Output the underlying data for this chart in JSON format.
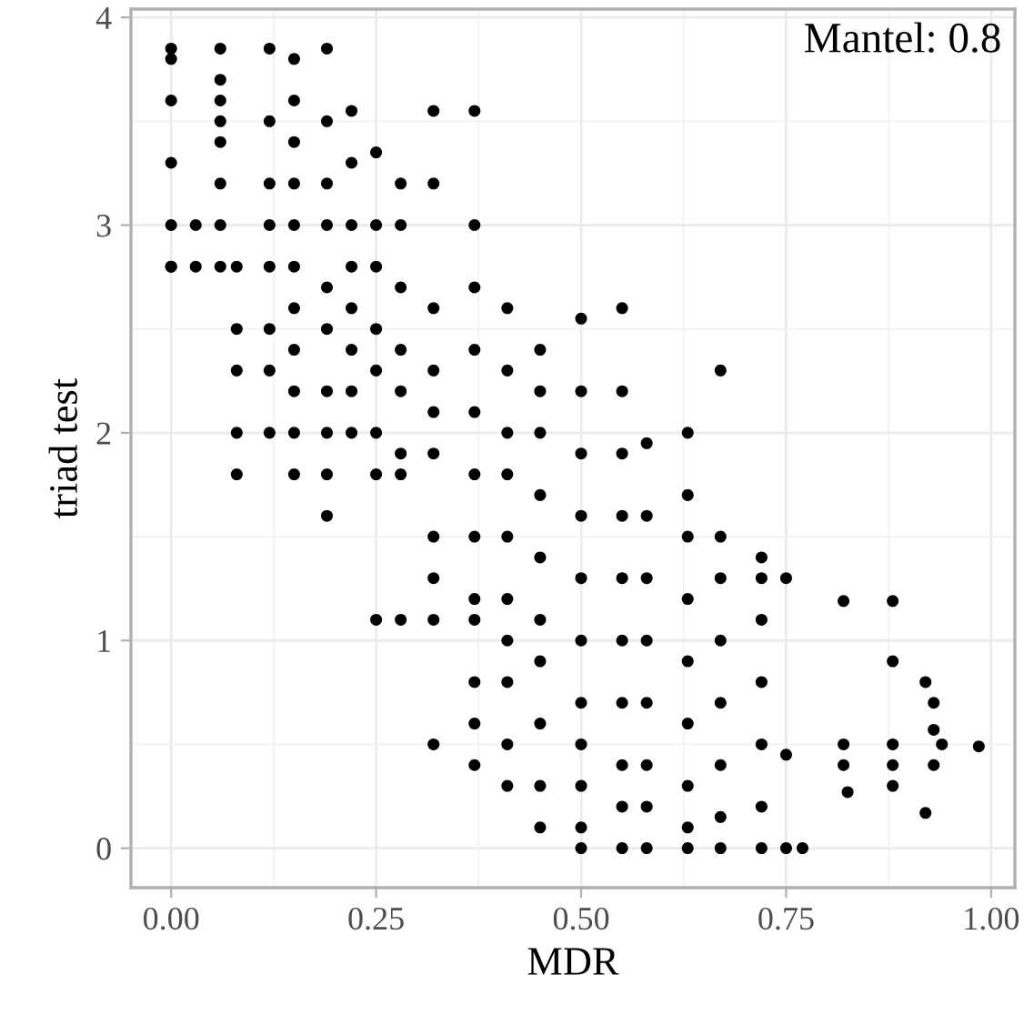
{
  "chart_data": {
    "type": "scatter",
    "xlabel": "MDR",
    "ylabel": "triad test",
    "annotations": [
      "Mantel: 0.8"
    ],
    "xlim": [
      -0.049,
      1.029
    ],
    "ylim": [
      -0.19,
      4.04
    ],
    "xticks": [
      {
        "value": 0,
        "label": "0.00"
      },
      {
        "value": 0.25,
        "label": "0.25"
      },
      {
        "value": 0.5,
        "label": "0.50"
      },
      {
        "value": 0.75,
        "label": "0.75"
      },
      {
        "value": 1,
        "label": "1.00"
      }
    ],
    "yticks": [
      0,
      1,
      2,
      3,
      4
    ],
    "grid": true,
    "marker": "circle",
    "series": [
      {
        "color": "#000000",
        "x": [
          0.0,
          0.0,
          0.0,
          0.0,
          0.0,
          0.0,
          0.0,
          0.03,
          0.03,
          0.06,
          0.06,
          0.06,
          0.06,
          0.06,
          0.06,
          0.06,
          0.06,
          0.08,
          0.08,
          0.08,
          0.08,
          0.08,
          0.12,
          0.12,
          0.12,
          0.12,
          0.12,
          0.12,
          0.12,
          0.12,
          0.15,
          0.15,
          0.15,
          0.15,
          0.15,
          0.15,
          0.15,
          0.15,
          0.15,
          0.15,
          0.15,
          0.19,
          0.19,
          0.19,
          0.19,
          0.19,
          0.19,
          0.19,
          0.19,
          0.19,
          0.19,
          0.22,
          0.22,
          0.22,
          0.22,
          0.22,
          0.22,
          0.22,
          0.22,
          0.25,
          0.25,
          0.25,
          0.25,
          0.25,
          0.25,
          0.25,
          0.25,
          0.28,
          0.28,
          0.28,
          0.28,
          0.28,
          0.28,
          0.28,
          0.28,
          0.32,
          0.32,
          0.32,
          0.32,
          0.32,
          0.32,
          0.32,
          0.32,
          0.32,
          0.32,
          0.37,
          0.37,
          0.37,
          0.37,
          0.37,
          0.37,
          0.37,
          0.37,
          0.37,
          0.37,
          0.37,
          0.37,
          0.41,
          0.41,
          0.41,
          0.41,
          0.41,
          0.41,
          0.41,
          0.41,
          0.41,
          0.41,
          0.45,
          0.45,
          0.45,
          0.45,
          0.45,
          0.45,
          0.45,
          0.45,
          0.45,
          0.45,
          0.5,
          0.5,
          0.5,
          0.5,
          0.5,
          0.5,
          0.5,
          0.5,
          0.5,
          0.5,
          0.5,
          0.55,
          0.55,
          0.55,
          0.55,
          0.55,
          0.55,
          0.55,
          0.55,
          0.55,
          0.55,
          0.58,
          0.58,
          0.58,
          0.58,
          0.58,
          0.58,
          0.58,
          0.58,
          0.63,
          0.63,
          0.63,
          0.63,
          0.63,
          0.63,
          0.63,
          0.63,
          0.63,
          0.67,
          0.67,
          0.67,
          0.67,
          0.67,
          0.67,
          0.67,
          0.67,
          0.72,
          0.72,
          0.72,
          0.72,
          0.72,
          0.72,
          0.72,
          0.75,
          0.75,
          0.75,
          0.77,
          0.82,
          0.82,
          0.82,
          0.825,
          0.88,
          0.88,
          0.88,
          0.88,
          0.88,
          0.92,
          0.93,
          0.93,
          0.94,
          0.93,
          0.92,
          0.985
        ],
        "values": [
          3.85,
          3.8,
          3.6,
          3.3,
          3.0,
          2.8,
          2.8,
          3.0,
          2.8,
          3.85,
          3.7,
          3.6,
          3.5,
          3.4,
          3.2,
          3.0,
          2.8,
          2.8,
          2.5,
          2.3,
          2.0,
          1.8,
          3.85,
          3.5,
          3.2,
          3.0,
          2.8,
          2.5,
          2.3,
          2.0,
          3.8,
          3.6,
          3.4,
          3.2,
          3.0,
          2.8,
          2.6,
          2.4,
          2.2,
          2.0,
          1.8,
          3.85,
          3.5,
          3.2,
          3.0,
          2.7,
          2.5,
          2.2,
          2.0,
          1.8,
          1.6,
          3.55,
          3.3,
          3.0,
          2.8,
          2.6,
          2.4,
          2.2,
          2.0,
          3.35,
          3.0,
          2.8,
          2.5,
          2.3,
          2.0,
          1.8,
          1.1,
          3.2,
          3.0,
          2.7,
          2.4,
          2.2,
          1.9,
          1.8,
          1.1,
          3.55,
          3.2,
          2.6,
          2.3,
          2.1,
          1.9,
          1.5,
          1.3,
          1.1,
          0.5,
          3.55,
          3.0,
          2.7,
          2.4,
          2.1,
          1.8,
          1.5,
          1.2,
          1.1,
          0.8,
          0.6,
          0.4,
          2.6,
          2.3,
          2.0,
          1.8,
          1.5,
          1.2,
          1.0,
          0.8,
          0.5,
          0.3,
          2.4,
          2.2,
          2.0,
          1.7,
          1.4,
          1.1,
          0.9,
          0.6,
          0.3,
          0.1,
          2.55,
          2.2,
          1.9,
          1.6,
          1.3,
          1.0,
          0.7,
          0.5,
          0.3,
          0.1,
          0.0,
          2.6,
          2.2,
          1.9,
          1.6,
          1.3,
          1.0,
          0.7,
          0.4,
          0.2,
          0.0,
          1.95,
          1.6,
          1.3,
          1.0,
          0.7,
          0.4,
          0.2,
          0.0,
          2.0,
          1.7,
          1.5,
          1.2,
          0.9,
          0.6,
          0.3,
          0.1,
          0.0,
          2.3,
          1.5,
          1.3,
          1.0,
          0.7,
          0.4,
          0.15,
          0.0,
          1.4,
          1.3,
          1.1,
          0.8,
          0.5,
          0.2,
          0.0,
          1.3,
          0.45,
          0.0,
          0.0,
          1.19,
          0.5,
          0.4,
          0.27,
          1.19,
          0.9,
          0.5,
          0.4,
          0.3,
          0.8,
          0.7,
          0.57,
          0.5,
          0.4,
          0.17,
          0.49
        ]
      }
    ]
  }
}
